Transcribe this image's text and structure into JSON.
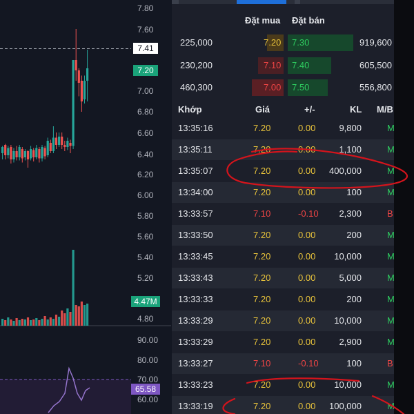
{
  "colors": {
    "up_candle": "#26a69a",
    "down_candle": "#ef5350",
    "annotation": "#d4141c",
    "match_price": "#e8c33b",
    "sell_text": "#f04545",
    "buy_text": "#2ecb5f"
  },
  "chart": {
    "y_ticks": [
      "7.80",
      "7.60",
      "7.41",
      "7.20",
      "7.00",
      "6.80",
      "6.60",
      "6.40",
      "6.20",
      "6.00",
      "5.80",
      "5.60",
      "5.40",
      "5.20",
      "4.80"
    ],
    "last_price_tag": "7.41",
    "current_price_tag": "7.20",
    "volume_tag": "4.47M",
    "rsi_ticks": [
      "90.00",
      "80.00",
      "70.00",
      "60.00"
    ],
    "rsi_value": "65.58"
  },
  "orderbook": {
    "bid_header": "Đặt mua",
    "ask_header": "Đặt bán",
    "rows": [
      {
        "bid_vol": "225,000",
        "bid_price": "7.20",
        "ask_price": "7.30",
        "ask_vol": "919,600"
      },
      {
        "bid_vol": "230,200",
        "bid_price": "7.10",
        "ask_price": "7.40",
        "ask_vol": "605,500"
      },
      {
        "bid_vol": "460,300",
        "bid_price": "7.00",
        "ask_price": "7.50",
        "ask_vol": "556,800"
      }
    ]
  },
  "trades": {
    "headers": {
      "time": "Khớp",
      "price": "Giá",
      "change": "+/-",
      "volume": "KL",
      "side": "M/B"
    },
    "rows": [
      {
        "time": "13:35:16",
        "price": "7.20",
        "change": "0.00",
        "volume": "9,800",
        "side": "M"
      },
      {
        "time": "13:35:11",
        "price": "7.20",
        "change": "0.00",
        "volume": "1,100",
        "side": "M"
      },
      {
        "time": "13:35:07",
        "price": "7.20",
        "change": "0.00",
        "volume": "400,000",
        "side": "M"
      },
      {
        "time": "13:34:00",
        "price": "7.20",
        "change": "0.00",
        "volume": "100",
        "side": "M"
      },
      {
        "time": "13:33:57",
        "price": "7.10",
        "change": "-0.10",
        "volume": "2,300",
        "side": "B"
      },
      {
        "time": "13:33:50",
        "price": "7.20",
        "change": "0.00",
        "volume": "200",
        "side": "M"
      },
      {
        "time": "13:33:45",
        "price": "7.20",
        "change": "0.00",
        "volume": "10,000",
        "side": "M"
      },
      {
        "time": "13:33:43",
        "price": "7.20",
        "change": "0.00",
        "volume": "5,000",
        "side": "M"
      },
      {
        "time": "13:33:33",
        "price": "7.20",
        "change": "0.00",
        "volume": "200",
        "side": "M"
      },
      {
        "time": "13:33:29",
        "price": "7.20",
        "change": "0.00",
        "volume": "10,000",
        "side": "M"
      },
      {
        "time": "13:33:29",
        "price": "7.20",
        "change": "0.00",
        "volume": "2,900",
        "side": "M"
      },
      {
        "time": "13:33:27",
        "price": "7.10",
        "change": "-0.10",
        "volume": "100",
        "side": "B"
      },
      {
        "time": "13:33:23",
        "price": "7.20",
        "change": "0.00",
        "volume": "10,000",
        "side": "M"
      },
      {
        "time": "13:33:19",
        "price": "7.20",
        "change": "0.00",
        "volume": "100,000",
        "side": "M"
      }
    ]
  }
}
